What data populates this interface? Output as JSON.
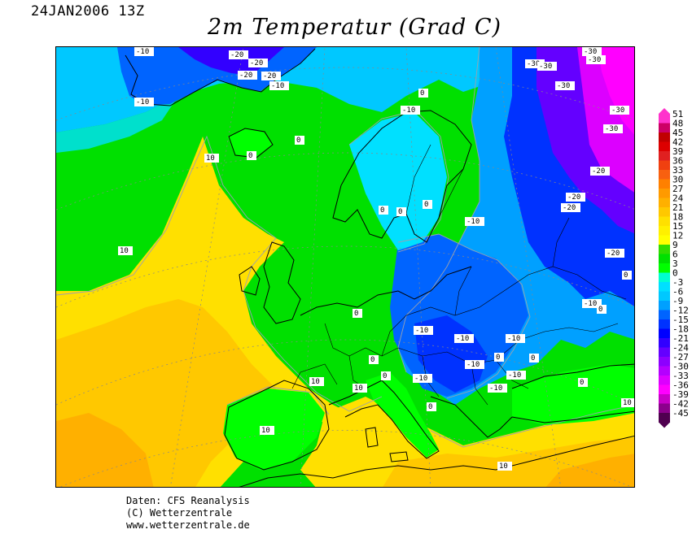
{
  "header": {
    "date": "24JAN2006 13Z",
    "title": "2m Temperatur (Grad C)"
  },
  "credits": {
    "line1": "Daten: CFS Reanalysis",
    "line2": "(C) Wetterzentrale",
    "line3": "www.wetterzentrale.de"
  },
  "legend": {
    "labels": [
      "51",
      "48",
      "45",
      "42",
      "39",
      "36",
      "33",
      "30",
      "27",
      "24",
      "21",
      "18",
      "15",
      "12",
      "9",
      "6",
      "3",
      "0",
      "-3",
      "-6",
      "-9",
      "-12",
      "-15",
      "-18",
      "-21",
      "-24",
      "-27",
      "-30",
      "-33",
      "-36",
      "-39",
      "-42",
      "-45"
    ],
    "colors": [
      "#ff33cc",
      "#cc0066",
      "#c00000",
      "#dd0000",
      "#e02020",
      "#f04010",
      "#f86010",
      "#ff8000",
      "#ff9a00",
      "#ffb000",
      "#ffc800",
      "#ffe000",
      "#fff000",
      "#ffff00",
      "#32dc00",
      "#00e000",
      "#00ff00",
      "#00ffd0",
      "#00e0ff",
      "#00c8ff",
      "#00a0ff",
      "#0064ff",
      "#0032ff",
      "#0000ff",
      "#3200ff",
      "#6400ff",
      "#8c00ff",
      "#b400ff",
      "#dc00ff",
      "#ff00ff",
      "#c800c8",
      "#8c008c",
      "#500050"
    ]
  },
  "isotherm_labels": [
    "-10",
    "-20",
    "-20",
    "-20",
    "-20",
    "-10",
    "-10",
    "0",
    "0",
    "0",
    "-10",
    "-10",
    "0",
    "0",
    "0",
    "-10",
    "10",
    "10",
    "0",
    "0",
    "-10",
    "-10",
    "-10",
    "-10",
    "-10",
    "0",
    "0",
    "0",
    "10",
    "10",
    "0",
    "-10",
    "10",
    "0",
    "10",
    "-30",
    "-30",
    "-30",
    "-30",
    "-30",
    "-30",
    "-30",
    "-20",
    "-20",
    "-20",
    "-20",
    "-10",
    "0",
    "0",
    "10"
  ]
}
